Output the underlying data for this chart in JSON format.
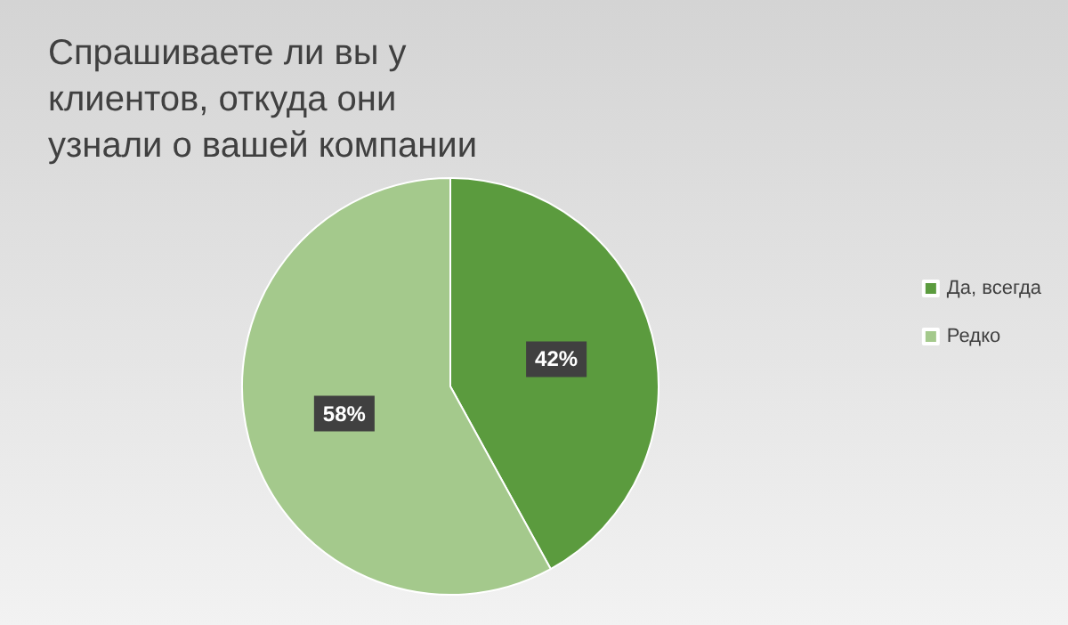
{
  "chart_data": {
    "type": "pie",
    "title": "Спрашиваете ли вы у клиентов, откуда они узнали о вашей компании",
    "categories": [
      "Да, всегда",
      "Редко"
    ],
    "values": [
      42,
      58
    ],
    "colors": [
      "#5b9b3e",
      "#a4c98c"
    ],
    "value_labels": [
      "42%",
      "58%"
    ],
    "legend": "right"
  }
}
